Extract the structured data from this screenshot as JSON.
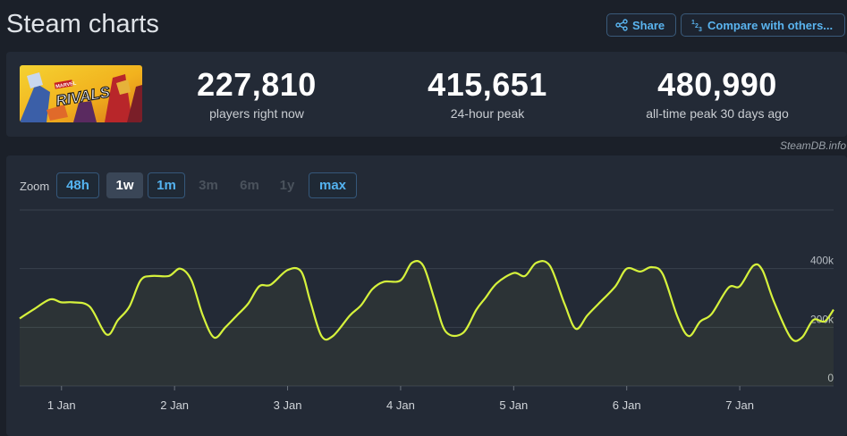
{
  "header": {
    "title": "Steam charts",
    "share_label": "Share",
    "compare_label": "Compare with others..."
  },
  "stats": [
    {
      "value": "227,810",
      "label": "players right now"
    },
    {
      "value": "415,651",
      "label": "24-hour peak"
    },
    {
      "value": "480,990",
      "label": "all-time peak 30 days ago"
    }
  ],
  "game": {
    "logo_text": "RIVALS",
    "badge_text": "MARVEL"
  },
  "watermark": "SteamDB.info",
  "zoom": {
    "label": "Zoom",
    "options": [
      {
        "label": "48h",
        "state": "active"
      },
      {
        "label": "1w",
        "state": "selected"
      },
      {
        "label": "1m",
        "state": "active"
      },
      {
        "label": "3m",
        "state": "disabled"
      },
      {
        "label": "6m",
        "state": "disabled"
      },
      {
        "label": "1y",
        "state": "disabled"
      },
      {
        "label": "max",
        "state": "active"
      }
    ]
  },
  "colors": {
    "line": "#d6f23c",
    "grid": "#3a424e",
    "accent": "#5ab4ef"
  },
  "chart_data": {
    "type": "line",
    "title": "",
    "xlabel": "",
    "ylabel": "",
    "x_ticks": [
      "1 Jan",
      "2 Jan",
      "3 Jan",
      "4 Jan",
      "5 Jan",
      "6 Jan",
      "7 Jan"
    ],
    "y_ticks": [
      "0",
      "200k",
      "400k"
    ],
    "ylim": [
      0,
      600000
    ],
    "x_range": [
      -0.37,
      6.83
    ],
    "grid": true,
    "series": [
      {
        "name": "",
        "x": [
          -0.37,
          -0.25,
          -0.1,
          0.0,
          0.1,
          0.25,
          0.4,
          0.5,
          0.6,
          0.7,
          0.8,
          0.95,
          1.05,
          1.15,
          1.25,
          1.35,
          1.45,
          1.55,
          1.65,
          1.75,
          1.85,
          2.0,
          2.12,
          2.2,
          2.3,
          2.4,
          2.55,
          2.65,
          2.75,
          2.85,
          3.0,
          3.1,
          3.2,
          3.3,
          3.4,
          3.55,
          3.67,
          3.75,
          3.85,
          4.0,
          4.1,
          4.2,
          4.32,
          4.45,
          4.55,
          4.65,
          4.75,
          4.9,
          5.0,
          5.12,
          5.22,
          5.32,
          5.45,
          5.55,
          5.65,
          5.75,
          5.9,
          6.0,
          6.12,
          6.2,
          6.3,
          6.45,
          6.55,
          6.65,
          6.75,
          6.83
        ],
        "y": [
          230000,
          260000,
          295000,
          285000,
          285000,
          270000,
          175000,
          225000,
          270000,
          360000,
          375000,
          375000,
          400000,
          360000,
          240000,
          165000,
          200000,
          240000,
          280000,
          340000,
          345000,
          395000,
          390000,
          290000,
          170000,
          170000,
          240000,
          275000,
          330000,
          355000,
          360000,
          420000,
          410000,
          295000,
          185000,
          180000,
          260000,
          300000,
          350000,
          385000,
          375000,
          420000,
          410000,
          280000,
          195000,
          240000,
          280000,
          340000,
          400000,
          390000,
          405000,
          380000,
          235000,
          170000,
          220000,
          245000,
          335000,
          340000,
          410000,
          395000,
          290000,
          165000,
          165000,
          225000,
          220000,
          260000
        ]
      }
    ]
  }
}
